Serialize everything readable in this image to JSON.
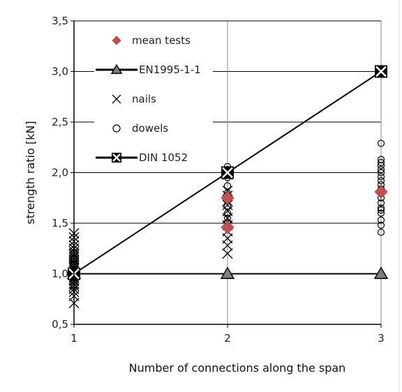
{
  "chart_data": {
    "type": "scatter",
    "xlabel": "Number of connections along the span",
    "ylabel": "strength ratio [kN]",
    "xlim": [
      1,
      3
    ],
    "ylim": [
      0.5,
      3.5
    ],
    "x_ticks": [
      "1",
      "2",
      "3"
    ],
    "y_ticks": [
      "0,5",
      "1,0",
      "1,5",
      "2,0",
      "2,5",
      "3,0",
      "3,5"
    ],
    "grid": true,
    "legend_position": "top-left",
    "colors": {
      "mean_tests": "#c0504d",
      "en1995": "#7f7f7f",
      "line": "#000000"
    },
    "series": [
      {
        "name": "mean tests",
        "marker": "diamond",
        "x": [
          1,
          2,
          2,
          3
        ],
        "y": [
          1.0,
          1.46,
          1.75,
          1.81
        ]
      },
      {
        "name": "EN1995-1-1",
        "marker": "triangle",
        "line": true,
        "x": [
          1,
          2,
          3
        ],
        "y": [
          1.0,
          1.0,
          1.0
        ]
      },
      {
        "name": "nails",
        "marker": "x",
        "x": [
          1,
          1,
          1,
          1,
          1,
          1,
          1,
          1,
          1,
          1,
          1,
          1,
          1,
          1,
          1,
          1,
          1,
          1,
          1,
          1,
          1,
          1,
          1,
          1,
          1,
          1,
          1,
          1,
          2,
          2,
          2,
          2,
          2,
          2,
          2,
          2,
          2,
          2,
          2,
          2
        ],
        "y": [
          0.71,
          0.78,
          0.82,
          0.85,
          0.88,
          0.9,
          0.93,
          0.95,
          0.97,
          0.99,
          1.0,
          1.01,
          1.03,
          1.05,
          1.06,
          1.08,
          1.1,
          1.12,
          1.14,
          1.16,
          1.18,
          1.2,
          1.22,
          1.25,
          1.28,
          1.32,
          1.36,
          1.4,
          1.2,
          1.28,
          1.35,
          1.42,
          1.48,
          1.55,
          1.62,
          1.68,
          1.72,
          1.77,
          1.82,
          1.98
        ]
      },
      {
        "name": "dowels",
        "marker": "circle",
        "x": [
          1,
          1,
          1,
          1,
          1,
          1,
          1,
          1,
          1,
          1,
          2,
          2,
          2,
          2,
          2,
          2,
          2,
          2,
          2,
          2,
          2,
          3,
          3,
          3,
          3,
          3,
          3,
          3,
          3,
          3,
          3,
          3,
          3,
          3,
          3,
          3,
          3,
          3,
          3,
          3
        ],
        "y": [
          0.88,
          0.92,
          0.96,
          1.0,
          1.03,
          1.06,
          1.09,
          1.12,
          1.15,
          1.2,
          1.5,
          1.55,
          1.6,
          1.67,
          1.72,
          1.8,
          1.87,
          1.95,
          2.0,
          2.03,
          2.06,
          1.41,
          1.48,
          1.53,
          1.6,
          1.65,
          1.7,
          1.75,
          1.8,
          1.84,
          1.88,
          1.92,
          1.96,
          2.0,
          2.03,
          2.07,
          2.1,
          2.13,
          1.63,
          2.29
        ]
      },
      {
        "name": "DIN 1052",
        "marker": "boxx",
        "line": true,
        "x": [
          1,
          2,
          3
        ],
        "y": [
          1.0,
          2.0,
          3.0
        ]
      }
    ]
  }
}
